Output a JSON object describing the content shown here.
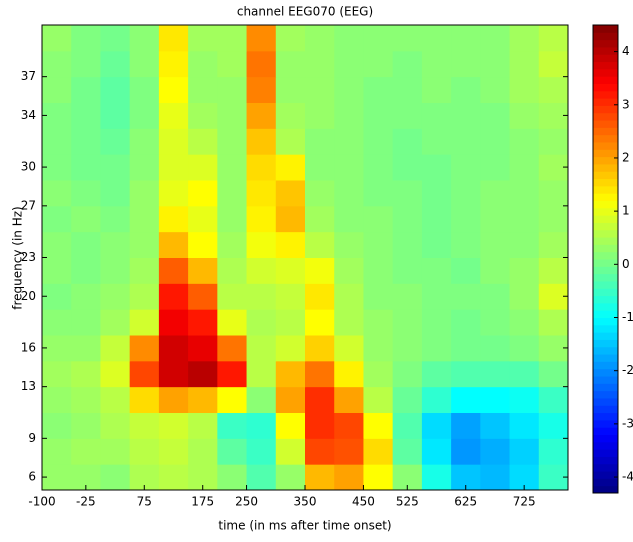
{
  "chart_data": {
    "type": "heatmap",
    "title": "channel EEG070 (EEG)",
    "xlabel": "time (in ms after time onset)",
    "ylabel": "frequency (in Hz)",
    "colormap": "jet",
    "x": [
      -75,
      -25,
      25,
      75,
      125,
      175,
      225,
      275,
      325,
      375,
      425,
      475,
      525,
      575,
      625,
      675,
      725,
      775
    ],
    "y": [
      6,
      8,
      10,
      12,
      14,
      16,
      18,
      20,
      22,
      24,
      26,
      28,
      30,
      32,
      34,
      36,
      38,
      40
    ],
    "z": [
      [
        0.3,
        0.3,
        0.2,
        0.5,
        0.6,
        0.5,
        0.2,
        -0.3,
        0.3,
        1.8,
        2.0,
        1.2,
        0.2,
        -0.8,
        -1.5,
        -1.6,
        -1.3,
        -0.5
      ],
      [
        0.3,
        0.4,
        0.4,
        0.6,
        0.7,
        0.5,
        -0.2,
        -0.5,
        0.8,
        2.8,
        2.7,
        1.5,
        -0.2,
        -1.2,
        -1.9,
        -1.7,
        -1.4,
        -0.6
      ],
      [
        0.2,
        0.3,
        0.5,
        0.7,
        0.8,
        0.6,
        -0.5,
        -0.6,
        1.2,
        3.0,
        2.8,
        1.2,
        -0.3,
        -1.3,
        -1.8,
        -1.5,
        -1.2,
        -0.8
      ],
      [
        0.3,
        0.4,
        0.6,
        1.5,
        2.0,
        1.8,
        1.2,
        0.2,
        2.0,
        3.0,
        2.0,
        0.6,
        -0.1,
        -0.6,
        -1.0,
        -1.0,
        -0.9,
        -0.5
      ],
      [
        0.4,
        0.5,
        0.9,
        2.8,
        3.8,
        4.0,
        3.2,
        0.6,
        1.8,
        2.4,
        1.3,
        0.4,
        0.1,
        -0.2,
        -0.3,
        -0.3,
        -0.3,
        0.0
      ],
      [
        0.3,
        0.3,
        0.7,
        2.2,
        3.8,
        3.6,
        2.4,
        0.6,
        0.8,
        1.6,
        0.8,
        0.3,
        0.2,
        0.1,
        0.0,
        0.0,
        0.1,
        0.3
      ],
      [
        0.2,
        0.2,
        0.4,
        0.8,
        3.5,
        3.2,
        1.0,
        0.5,
        0.6,
        1.2,
        0.5,
        0.3,
        0.2,
        0.1,
        0.0,
        0.1,
        0.2,
        0.5
      ],
      [
        0.1,
        0.2,
        0.3,
        0.5,
        3.2,
        2.6,
        0.6,
        0.6,
        0.7,
        1.4,
        0.5,
        0.2,
        0.2,
        0.1,
        0.1,
        0.1,
        0.3,
        0.9
      ],
      [
        0.2,
        0.1,
        0.2,
        0.4,
        2.6,
        1.8,
        0.5,
        0.8,
        0.9,
        1.1,
        0.4,
        0.2,
        0.1,
        0.1,
        0.0,
        0.2,
        0.3,
        0.6
      ],
      [
        0.2,
        0.1,
        0.2,
        0.3,
        1.8,
        1.2,
        0.4,
        1.1,
        1.3,
        0.6,
        0.3,
        0.2,
        0.1,
        0.0,
        0.1,
        0.2,
        0.2,
        0.4
      ],
      [
        0.1,
        0.2,
        0.1,
        0.3,
        1.3,
        1.0,
        0.3,
        1.3,
        1.8,
        0.4,
        0.2,
        0.2,
        0.1,
        0.0,
        0.1,
        0.2,
        0.2,
        0.3
      ],
      [
        0.2,
        0.1,
        0.0,
        0.3,
        1.0,
        1.2,
        0.3,
        1.4,
        1.7,
        0.3,
        0.2,
        0.1,
        0.1,
        0.0,
        0.1,
        0.2,
        0.2,
        0.3
      ],
      [
        0.1,
        0.0,
        0.0,
        0.2,
        0.9,
        0.9,
        0.3,
        1.5,
        1.3,
        0.2,
        0.2,
        0.1,
        0.0,
        0.0,
        0.1,
        0.1,
        0.2,
        0.4
      ],
      [
        0.1,
        0.0,
        -0.1,
        0.2,
        0.9,
        0.6,
        0.3,
        1.7,
        0.5,
        0.2,
        0.2,
        0.1,
        0.0,
        0.1,
        0.1,
        0.1,
        0.2,
        0.3
      ],
      [
        0.1,
        0.0,
        -0.2,
        0.1,
        1.0,
        0.4,
        0.3,
        2.0,
        0.4,
        0.3,
        0.2,
        0.1,
        0.1,
        0.1,
        0.1,
        0.1,
        0.3,
        0.4
      ],
      [
        0.2,
        0.0,
        -0.2,
        0.1,
        1.2,
        0.3,
        0.3,
        2.3,
        0.3,
        0.3,
        0.2,
        0.1,
        0.1,
        0.2,
        0.1,
        0.2,
        0.4,
        0.5
      ],
      [
        0.2,
        0.1,
        -0.1,
        0.2,
        1.3,
        0.3,
        0.4,
        2.4,
        0.3,
        0.3,
        0.2,
        0.2,
        0.1,
        0.2,
        0.2,
        0.2,
        0.4,
        0.7
      ],
      [
        0.3,
        0.1,
        0.0,
        0.2,
        1.4,
        0.4,
        0.4,
        2.2,
        0.4,
        0.3,
        0.2,
        0.2,
        0.2,
        0.2,
        0.2,
        0.2,
        0.4,
        0.6
      ]
    ],
    "xlim": [
      -100,
      800
    ],
    "xticks": [
      -100,
      -25,
      75,
      175,
      250,
      350,
      450,
      525,
      625,
      725
    ],
    "ylim": [
      5,
      41
    ],
    "yticks": [
      6,
      9,
      13,
      16,
      20,
      23,
      27,
      30,
      34,
      37
    ],
    "clim": [
      -4.3,
      4.5
    ],
    "colorbar_ticks": [
      -4,
      -3,
      -2,
      -1,
      0,
      1,
      2,
      3,
      4
    ]
  }
}
